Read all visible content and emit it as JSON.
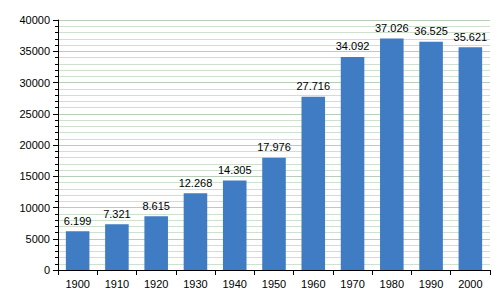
{
  "chart_data": {
    "type": "bar",
    "categories": [
      "1900",
      "1910",
      "1920",
      "1930",
      "1940",
      "1950",
      "1960",
      "1970",
      "1980",
      "1990",
      "2000"
    ],
    "values": [
      6199,
      7321,
      8615,
      12268,
      14305,
      17976,
      27716,
      34092,
      37026,
      36525,
      35621
    ],
    "value_labels": [
      "6.199",
      "7.321",
      "8.615",
      "12.268",
      "14.305",
      "17.976",
      "27.716",
      "34.092",
      "37.026",
      "36.525",
      "35.621"
    ],
    "data_labels": true,
    "color": "#3f7cc4",
    "ylim": [
      0,
      40000
    ],
    "yticks": [
      0,
      5000,
      10000,
      15000,
      20000,
      25000,
      30000,
      35000,
      40000
    ],
    "grid": true
  }
}
